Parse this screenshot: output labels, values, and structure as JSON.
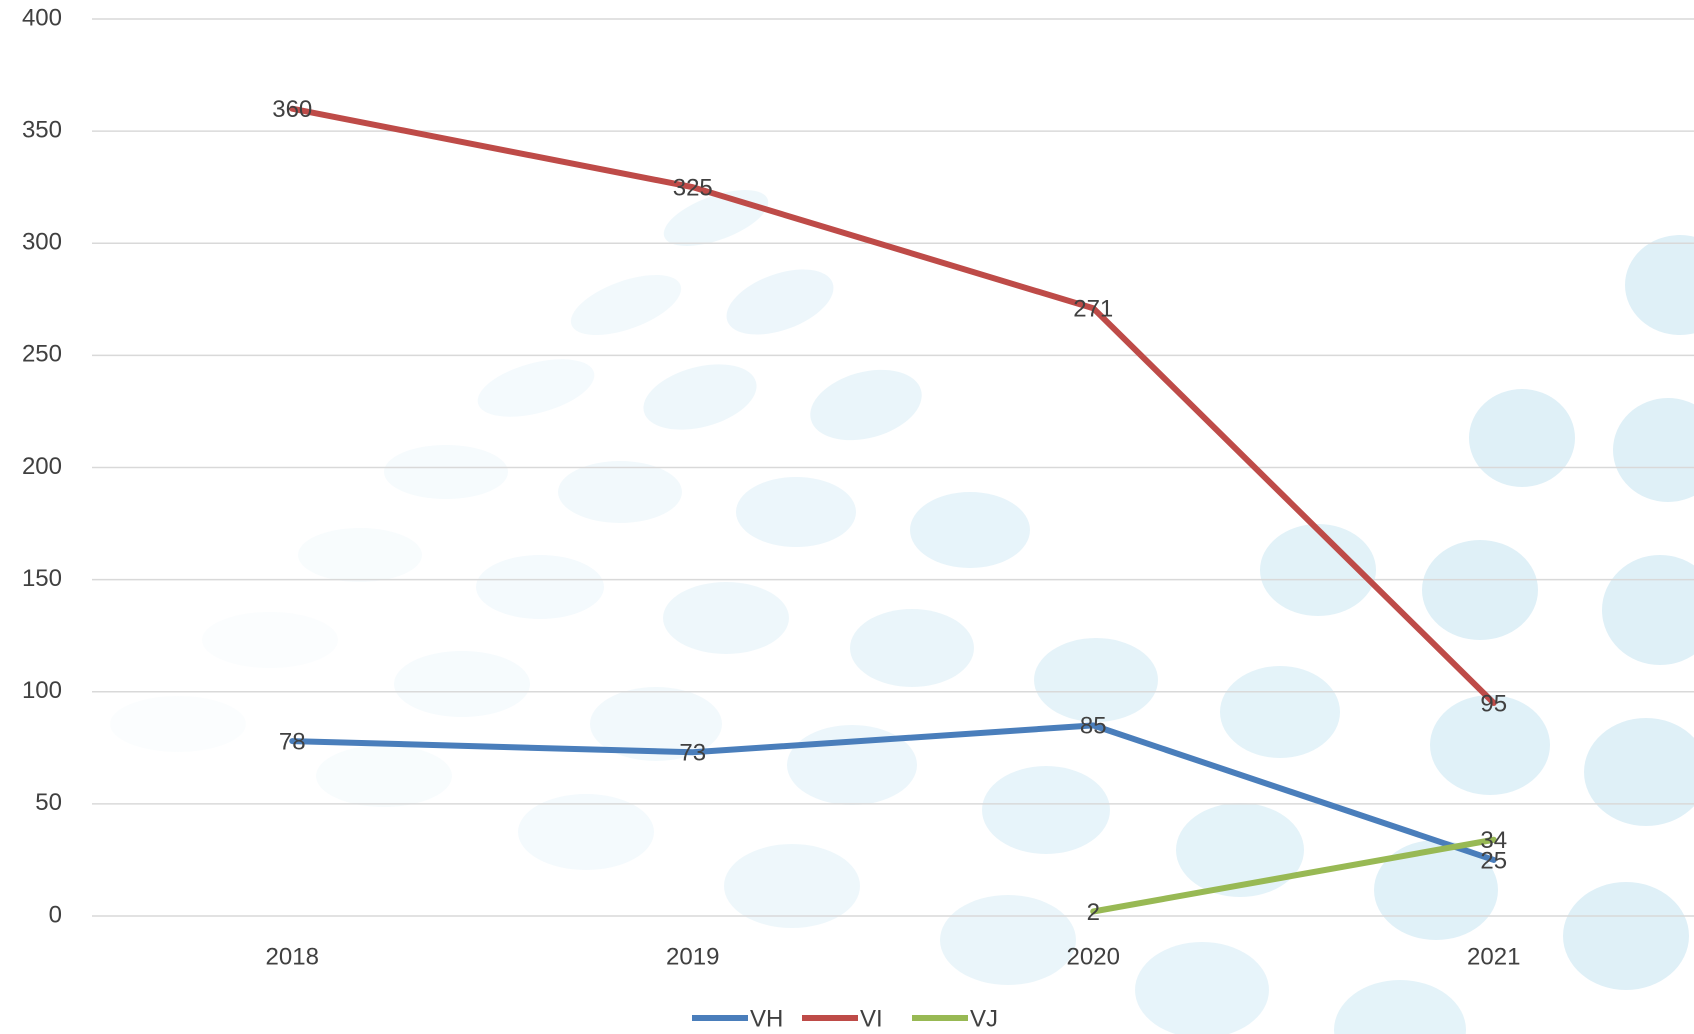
{
  "chart_data": {
    "type": "line",
    "categories": [
      "2018",
      "2019",
      "2020",
      "2021"
    ],
    "series": [
      {
        "name": "VH",
        "color": "#4a7ebb",
        "values": [
          78,
          73,
          85,
          25
        ]
      },
      {
        "name": "VI",
        "color": "#be4b48",
        "values": [
          360,
          325,
          271,
          95
        ]
      },
      {
        "name": "VJ",
        "color": "#98b954",
        "values": [
          null,
          null,
          2,
          34
        ]
      }
    ],
    "ylim": [
      0,
      400
    ],
    "yticks": [
      0,
      50,
      100,
      150,
      200,
      250,
      300,
      350,
      400
    ],
    "grid": true,
    "legend": "bottom"
  }
}
